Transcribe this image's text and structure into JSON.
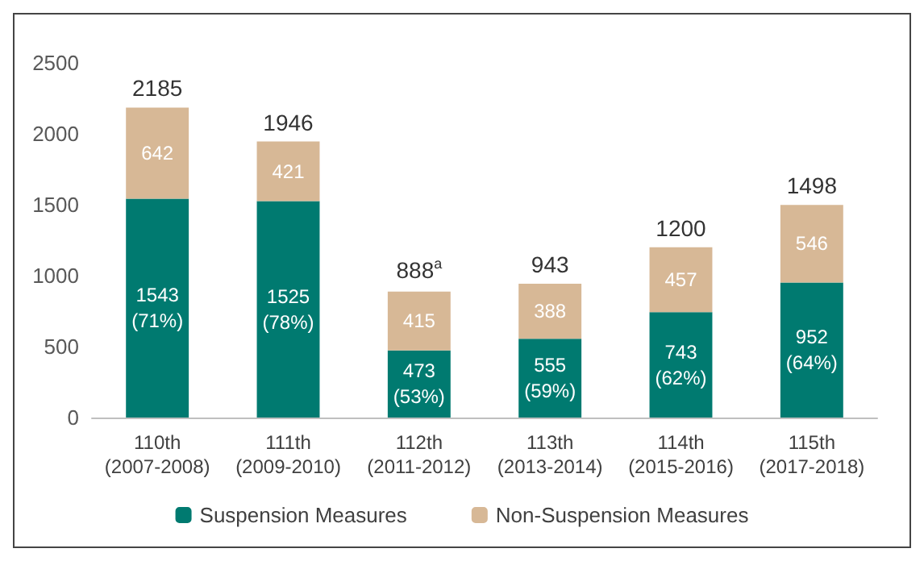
{
  "chart_data": {
    "type": "bar",
    "stacked": true,
    "categories": [
      "110th (2007-2008)",
      "111th (2009-2010)",
      "112th (2011-2012)",
      "113th (2013-2014)",
      "114th (2015-2016)",
      "115th (2017-2018)"
    ],
    "series": [
      {
        "name": "Suspension Measures",
        "color": "#007a70",
        "values": [
          1543,
          1525,
          473,
          555,
          743,
          952
        ],
        "value_labels": [
          "1543 (71%)",
          "1525 (78%)",
          "473 (53%)",
          "555 (59%)",
          "743 (62%)",
          "952 (64%)"
        ]
      },
      {
        "name": "Non-Suspension Measures",
        "color": "#d7b896",
        "values": [
          642,
          421,
          415,
          388,
          457,
          546
        ],
        "value_labels": [
          "642",
          "421",
          "415",
          "388",
          "457",
          "546"
        ]
      }
    ],
    "totals": [
      "2185",
      "1946",
      "888$^{a}$",
      "943",
      "1200",
      "1498"
    ],
    "ylim": [
      0,
      2500
    ],
    "yticks": [
      0,
      500,
      1000,
      1500,
      2000,
      2500
    ],
    "grid": false,
    "legend": "bottom"
  }
}
